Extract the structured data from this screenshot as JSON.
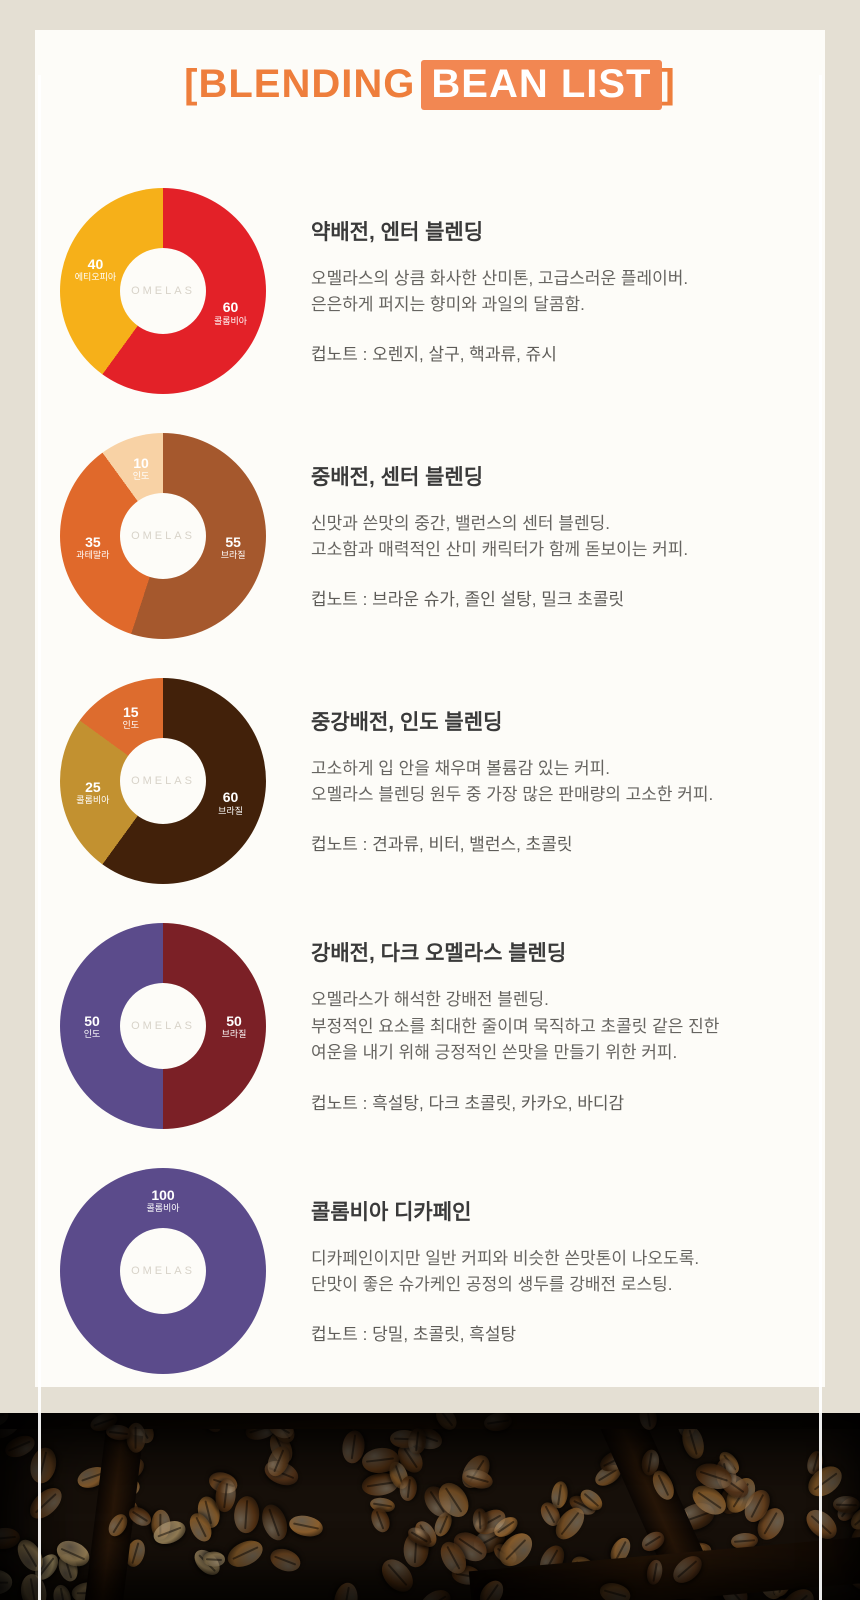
{
  "header": {
    "bracket_open": "[",
    "title_plain": "BLENDING",
    "title_highlight": "BEAN LIST",
    "bracket_close": "]"
  },
  "watermark": "OMELAS",
  "colors": {
    "accent_orange": "#ee7e3c",
    "highlight_bg": "#f28752",
    "page_bg": "#e4dfd3",
    "card_bg": "#fdfcf8"
  },
  "blends": [
    {
      "title": "약배전, 엔터 블렌딩",
      "description": "오멜라스의 상큼 화사한 산미톤, 고급스러운 플레이버.\n은은하게 퍼지는 향미와 과일의 달콤함.",
      "cup_note": "컵노트 : 오렌지, 살구, 핵과류, 쥬시"
    },
    {
      "title": "중배전, 센터 블렌딩",
      "description": "신맛과 쓴맛의 중간, 밸런스의 센터 블렌딩.\n고소함과 매력적인 산미 캐릭터가 함께 돋보이는 커피.",
      "cup_note": "컵노트 : 브라운 슈가, 졸인 설탕, 밀크 초콜릿"
    },
    {
      "title": "중강배전, 인도 블렌딩",
      "description": "고소하게 입 안을 채우며 볼륨감 있는 커피.\n오멜라스 블렌딩 원두 중 가장 많은 판매량의 고소한 커피.",
      "cup_note": "컵노트 : 견과류, 비터, 밸런스, 초콜릿"
    },
    {
      "title": "강배전, 다크 오멜라스 블렌딩",
      "description": "오멜라스가 해석한 강배전 블렌딩.\n부정적인 요소를 최대한 줄이며 묵직하고 초콜릿 같은 진한\n여운을 내기 위해 긍정적인 쓴맛을 만들기 위한 커피.",
      "cup_note": "컵노트 : 흑설탕, 다크 초콜릿, 카카오, 바디감"
    },
    {
      "title": "콜롬비아 디카페인",
      "description": "디카페인이지만 일반 커피와 비슷한 쓴맛톤이 나오도록.\n단맛이 좋은 슈가케인 공정의 생두를 강배전 로스팅.",
      "cup_note": "컵노트 : 당밀, 초콜릿, 흑설탕"
    }
  ],
  "chart_data": [
    {
      "type": "pie",
      "title": "약배전, 엔터 블렌딩",
      "donut": true,
      "start_angle_deg": 0,
      "segments": [
        {
          "label": "콜롬비아",
          "value": 60,
          "color": "#e32128"
        },
        {
          "label": "에티오피아",
          "value": 40,
          "color": "#f6b019"
        }
      ]
    },
    {
      "type": "pie",
      "title": "중배전, 센터 블렌딩",
      "donut": true,
      "start_angle_deg": 0,
      "segments": [
        {
          "label": "브라질",
          "value": 55,
          "color": "#a5582d"
        },
        {
          "label": "과테말라",
          "value": 35,
          "color": "#e0692b"
        },
        {
          "label": "인도",
          "value": 10,
          "color": "#f8d2a5"
        }
      ]
    },
    {
      "type": "pie",
      "title": "중강배전, 인도 블렌딩",
      "donut": true,
      "start_angle_deg": 0,
      "segments": [
        {
          "label": "브라질",
          "value": 60,
          "color": "#42210a"
        },
        {
          "label": "콜롬비아",
          "value": 25,
          "color": "#c29130"
        },
        {
          "label": "인도",
          "value": 15,
          "color": "#dd6c2e"
        }
      ]
    },
    {
      "type": "pie",
      "title": "강배전, 다크 오멜라스 블렌딩",
      "donut": true,
      "start_angle_deg": 0,
      "segments": [
        {
          "label": "브라질",
          "value": 50,
          "color": "#7b2026"
        },
        {
          "label": "인도",
          "value": 50,
          "color": "#5b4b8b"
        }
      ]
    },
    {
      "type": "pie",
      "title": "콜롬비아 디카페인",
      "donut": true,
      "start_angle_deg": 0,
      "segments": [
        {
          "label": "콜롬비아",
          "value": 100,
          "color": "#5b4b8b",
          "label_angle": 0
        }
      ]
    }
  ]
}
